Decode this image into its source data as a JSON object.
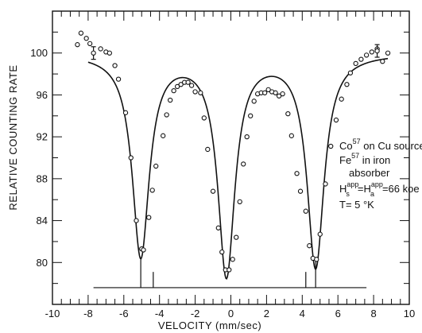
{
  "chart_data": {
    "type": "scatter",
    "title": "",
    "xlabel": "VELOCITY (mm/sec)",
    "ylabel": "RELATIVE COUNTING RATE",
    "xlim": [
      -10,
      10
    ],
    "ylim": [
      76,
      104
    ],
    "x_ticks": [
      -10,
      -8,
      -6,
      -4,
      -2,
      0,
      2,
      4,
      6,
      8,
      10
    ],
    "x_tick_labels": [
      "-10",
      "-8",
      "-6",
      "-4",
      "-2",
      "0",
      "2",
      "4",
      "6",
      "8",
      "10"
    ],
    "y_ticks": [
      80,
      84,
      88,
      92,
      96,
      100
    ],
    "y_tick_labels": [
      "80",
      "84",
      "88",
      "92",
      "96",
      "100"
    ],
    "grid": false,
    "series": [
      {
        "style": "open-circles",
        "x": [
          -8.6,
          -8.4,
          -8.1,
          -7.9,
          -7.3,
          -7.0,
          -6.8,
          -6.5,
          -6.3,
          -5.9,
          -5.6,
          -5.3,
          -5.0,
          -4.9,
          -4.6,
          -4.4,
          -4.2,
          -3.8,
          -3.6,
          -3.4,
          -3.2,
          -3.0,
          -2.8,
          -2.6,
          -2.4,
          -2.2,
          -2.0,
          -1.7,
          -1.5,
          -1.3,
          -1.0,
          -0.7,
          -0.5,
          -0.3,
          -0.1,
          0.1,
          0.3,
          0.5,
          0.7,
          0.9,
          1.1,
          1.3,
          1.5,
          1.7,
          1.9,
          2.1,
          2.3,
          2.5,
          2.7,
          2.9,
          3.2,
          3.4,
          3.7,
          3.9,
          4.2,
          4.4,
          4.6,
          4.8,
          5.0,
          5.3,
          5.6,
          5.9,
          6.2,
          6.5,
          6.7,
          7.0,
          7.3,
          7.6,
          7.9,
          8.2,
          8.5,
          8.8
        ],
        "y": [
          100.8,
          101.9,
          101.4,
          100.9,
          100.4,
          100.1,
          100.0,
          98.8,
          97.5,
          94.3,
          90.0,
          84.0,
          81.3,
          81.2,
          84.3,
          86.9,
          89.2,
          92.1,
          94.1,
          95.5,
          96.4,
          96.8,
          97.0,
          97.2,
          97.2,
          96.9,
          96.3,
          96.2,
          93.8,
          90.8,
          86.8,
          83.3,
          81.0,
          79.3,
          79.3,
          80.3,
          82.4,
          85.8,
          89.4,
          92.0,
          94.0,
          95.4,
          96.1,
          96.2,
          96.2,
          96.5,
          96.3,
          96.2,
          95.9,
          96.1,
          94.2,
          92.1,
          88.5,
          86.8,
          84.9,
          81.6,
          80.4,
          80.3,
          82.7,
          87.5,
          91.1,
          93.6,
          95.6,
          97.0,
          98.1,
          99.0,
          99.4,
          99.8,
          100.1,
          100.4,
          99.2,
          100.0
        ]
      },
      {
        "style": "fit-curve",
        "baseline": 100.0,
        "peaks": [
          {
            "center": -5.05,
            "depth": 18.9,
            "width": 0.58
          },
          {
            "center": -0.25,
            "depth": 20.6,
            "width": 0.58
          },
          {
            "center": 4.75,
            "depth": 19.9,
            "width": 0.58
          }
        ],
        "overlap_correction": 1.02
      }
    ],
    "error_bars": [
      {
        "x": -7.7,
        "y": 100.0,
        "err": 0.6
      },
      {
        "x": 8.2,
        "y": 100.2,
        "err": 0.6
      }
    ],
    "stick_diagram": {
      "baseline_y": 77.6,
      "x_range": [
        -7.7,
        7.6
      ],
      "lines": [
        {
          "x": -5.05,
          "top": 80.3
        },
        {
          "x": -4.35,
          "top": 79.1
        },
        {
          "x": 4.2,
          "top": 79.1
        },
        {
          "x": 4.75,
          "top": 80.3
        }
      ]
    },
    "annotation": {
      "line1_pre": "Co",
      "line1_sup": "57",
      "line1_post": " on Cu source",
      "line2_pre": "Fe",
      "line2_sup": "57",
      "line2_post": " in iron",
      "line3": "absorber",
      "line4_a": "H",
      "line4_a_sub": "s",
      "line4_a_sup": "app",
      "line4_eq": "=H",
      "line4_b_sub": "a",
      "line4_b_sup": "app",
      "line4_post": "=66 koe",
      "line5": "T= 5 °K"
    }
  }
}
